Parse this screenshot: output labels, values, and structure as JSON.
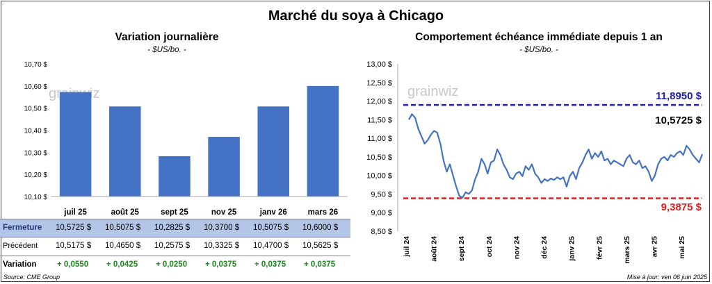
{
  "title": "Marché du soya à Chicago",
  "left_panel": {
    "title": "Variation journalière",
    "unit": "- $US/bo. -",
    "watermark": "grainwiz"
  },
  "right_panel": {
    "title": "Comportement échéance immédiate depuis 1 an",
    "unit": "- $US/bo. -",
    "watermark": "grainwiz",
    "upper_label": "11,8950 $",
    "lower_label": "9,3875 $",
    "last_label": "10,5725 $"
  },
  "table": {
    "rows": [
      {
        "label": "Fermeture",
        "values": [
          "10,5725  $",
          "10,5075  $",
          "10,2825  $",
          "10,3700  $",
          "10,5075  $",
          "10,6000  $"
        ]
      },
      {
        "label": "Précédent",
        "values": [
          "10,5175  $",
          "10,4650  $",
          "10,2575  $",
          "10,3325  $",
          "10,4700  $",
          "10,5625  $"
        ]
      },
      {
        "label": "Variation",
        "values": [
          "+ 0,0550",
          "+ 0,0425",
          "+ 0,0250",
          "+ 0,0375",
          "+ 0,0375",
          "+ 0,0375"
        ]
      }
    ]
  },
  "footer": {
    "source": "Source: CME Group",
    "updated": "Mise à jour: ven 06 juin 2025"
  },
  "colors": {
    "bar": "#4472c4",
    "line": "#4472c4",
    "upper_line": "#1f1fa8",
    "lower_line": "#e02020",
    "positive": "#1a8a1a",
    "table_highlight": "#b4c6e7"
  },
  "chart_data": [
    {
      "type": "bar",
      "title": "Variation journalière",
      "categories": [
        "juil 25",
        "août 25",
        "sept 25",
        "nov 25",
        "janv 26",
        "mars 26"
      ],
      "values": [
        10.5725,
        10.5075,
        10.2825,
        10.37,
        10.5075,
        10.6
      ],
      "ylim": [
        10.1,
        10.7
      ],
      "yticks": [
        "10,10 $",
        "10,20 $",
        "10,30 $",
        "10,40 $",
        "10,50 $",
        "10,60 $",
        "10,70 $"
      ],
      "grid": false
    },
    {
      "type": "line",
      "title": "Comportement échéance immédiate depuis 1 an",
      "ylim": [
        8.5,
        13.0
      ],
      "yticks": [
        "8,50 $",
        "9,00 $",
        "9,50 $",
        "10,00 $",
        "10,50 $",
        "11,00 $",
        "11,50 $",
        "12,00 $",
        "12,50 $",
        "13,00 $"
      ],
      "xticks": [
        "juil 24",
        "août 24",
        "sept 24",
        "oct 24",
        "nov 24",
        "déc 24",
        "janv 25",
        "févr 25",
        "mars 25",
        "avr 25",
        "mai 25"
      ],
      "reference_lines": [
        11.895,
        9.3875
      ],
      "series": [
        {
          "values": [
            11.5,
            11.65,
            11.55,
            11.25,
            11.05,
            10.85,
            10.95,
            11.1,
            11.2,
            11.15,
            10.85,
            10.4,
            10.1,
            10.3,
            10.0,
            9.7,
            9.45,
            9.4,
            9.55,
            9.5,
            9.6,
            9.9,
            10.1,
            10.45,
            10.3,
            10.05,
            10.35,
            10.4,
            10.7,
            10.55,
            10.3,
            10.15,
            9.95,
            9.9,
            10.05,
            10.1,
            9.98,
            10.25,
            10.15,
            10.3,
            10.05,
            9.95,
            9.8,
            9.9,
            9.85,
            9.92,
            9.88,
            9.95,
            9.9,
            9.95,
            9.7,
            9.98,
            10.1,
            9.9,
            10.2,
            10.35,
            10.55,
            10.7,
            10.45,
            10.6,
            10.5,
            10.65,
            10.4,
            10.45,
            10.3,
            10.4,
            10.35,
            10.3,
            10.25,
            10.45,
            10.55,
            10.35,
            10.3,
            10.4,
            10.2,
            10.25,
            10.1,
            9.85,
            10.0,
            10.3,
            10.45,
            10.5,
            10.4,
            10.55,
            10.5,
            10.6,
            10.65,
            10.55,
            10.8,
            10.7,
            10.55,
            10.45,
            10.35,
            10.5725
          ]
        }
      ]
    }
  ]
}
